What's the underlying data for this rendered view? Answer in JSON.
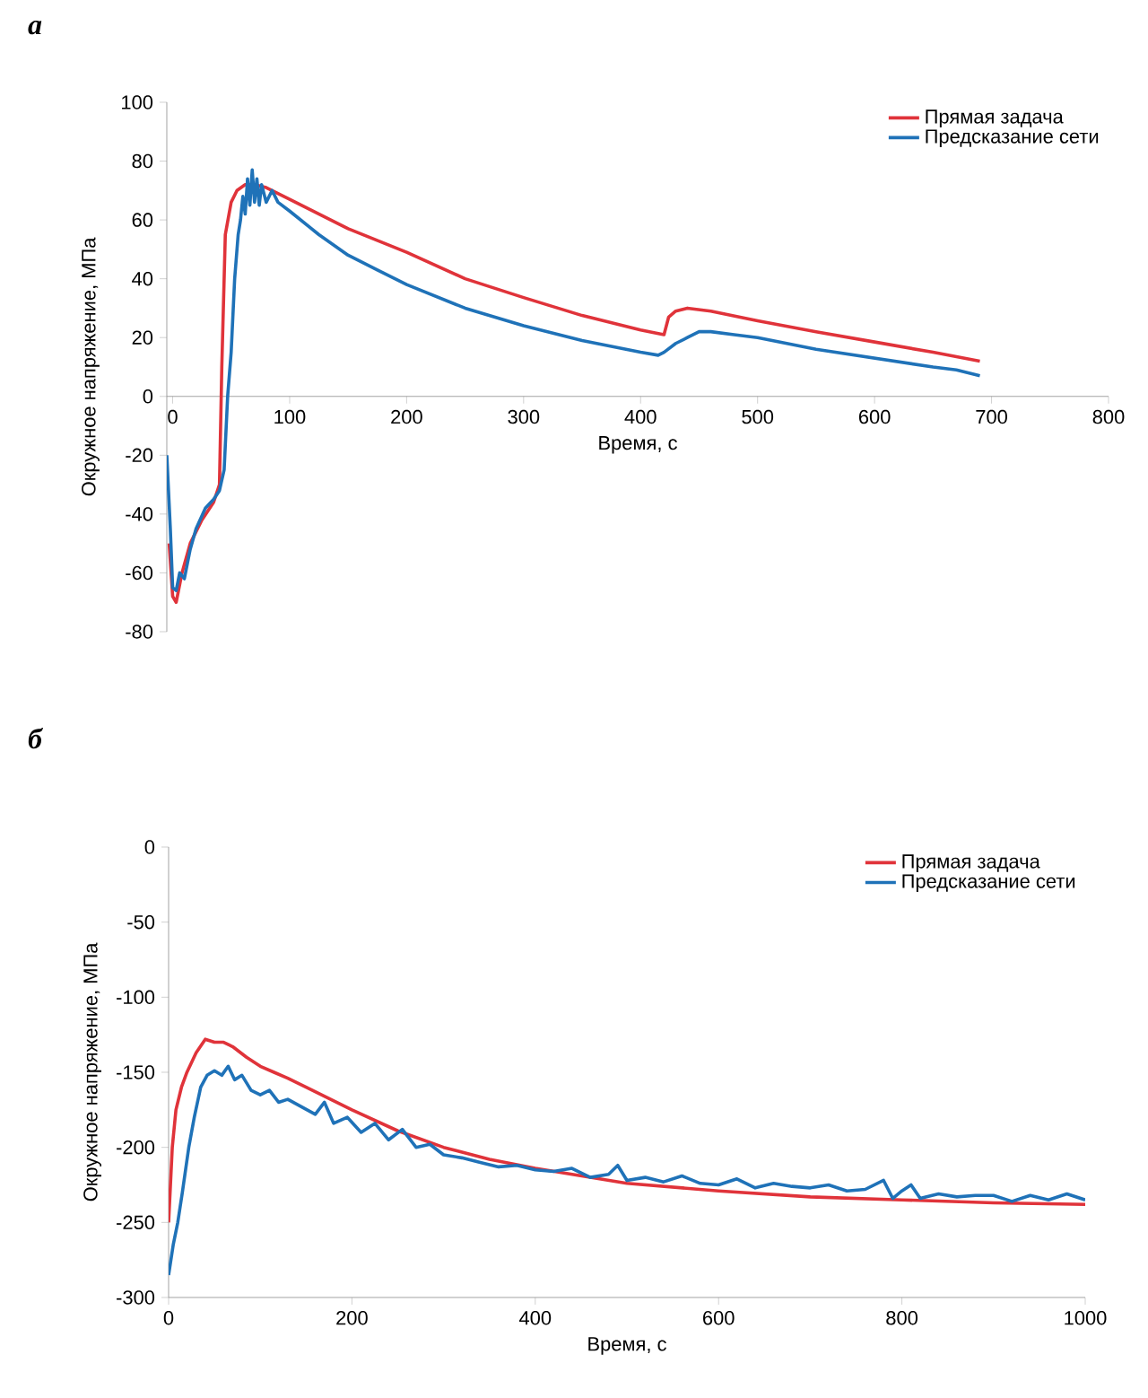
{
  "chart_data": [
    {
      "type": "line",
      "title": "а",
      "xlabel": "Время, с",
      "ylabel": "Окружное напряжение, МПа",
      "xlim": [
        -5,
        800
      ],
      "ylim": [
        -80,
        100
      ],
      "xticks": [
        0,
        100,
        200,
        300,
        400,
        500,
        600,
        700,
        800
      ],
      "yticks": [
        -80,
        -60,
        -40,
        -20,
        0,
        20,
        40,
        60,
        80,
        100
      ],
      "legend": "top right",
      "series": [
        {
          "name": "Прямая задача",
          "color": "#e0333a",
          "x": [
            -3,
            0,
            3,
            8,
            15,
            25,
            35,
            40,
            42,
            45,
            50,
            55,
            62,
            70,
            80,
            100,
            150,
            200,
            250,
            300,
            350,
            400,
            420,
            424,
            430,
            440,
            460,
            500,
            550,
            600,
            650,
            690
          ],
          "values": [
            -50,
            -68,
            -70,
            -60,
            -50,
            -42,
            -36,
            -30,
            10,
            55,
            66,
            70,
            72,
            72,
            71,
            67,
            57,
            49,
            40,
            33.6,
            27.5,
            22.6,
            21,
            27,
            29,
            30,
            29,
            25.7,
            22,
            18.5,
            15,
            12
          ]
        },
        {
          "name": "Предсказание сети",
          "color": "#1f72b8",
          "x": [
            -5,
            -2,
            0,
            3,
            6,
            10,
            15,
            20,
            28,
            35,
            40,
            44,
            47,
            50,
            53,
            56,
            58,
            60,
            62,
            64,
            66,
            68,
            70,
            72,
            74,
            76,
            80,
            85,
            90,
            100,
            125,
            150,
            175,
            200,
            250,
            300,
            350,
            400,
            415,
            420,
            430,
            440,
            450,
            460,
            480,
            500,
            550,
            600,
            650,
            670,
            690
          ],
          "values": [
            -20,
            -45,
            -65,
            -66,
            -60,
            -62,
            -52,
            -45,
            -38,
            -35,
            -32,
            -25,
            0,
            15,
            40,
            55,
            60,
            68,
            62,
            74,
            65,
            77,
            66,
            74,
            65,
            72,
            66,
            70,
            66,
            63,
            55,
            48,
            43,
            38,
            30,
            24,
            19,
            15,
            14,
            15,
            18,
            20,
            22,
            22,
            21,
            20,
            16,
            13,
            10,
            9,
            7
          ]
        }
      ]
    },
    {
      "type": "line",
      "title": "б",
      "xlabel": "Время, с",
      "ylabel": "Окружное напряжение, МПа",
      "xlim": [
        0,
        1000
      ],
      "ylim": [
        -300,
        0
      ],
      "xticks": [
        0,
        200,
        400,
        600,
        800,
        1000
      ],
      "yticks": [
        -300,
        -250,
        -200,
        -150,
        -100,
        -50,
        0
      ],
      "legend": "top right",
      "series": [
        {
          "name": "Прямая задача",
          "color": "#e0333a",
          "x": [
            0,
            4,
            8,
            14,
            20,
            30,
            40,
            50,
            60,
            70,
            85,
            100,
            115,
            130,
            150,
            200,
            250,
            300,
            350,
            400,
            500,
            600,
            700,
            800,
            900,
            1000
          ],
          "values": [
            -250,
            -200,
            -175,
            -160,
            -150,
            -137,
            -128,
            -130,
            -130,
            -133,
            -140,
            -146,
            -150,
            -154,
            -160,
            -175,
            -189,
            -200,
            -208,
            -214,
            -224,
            -229,
            -233,
            -235,
            -237,
            -238
          ]
        },
        {
          "name": "Предсказание сети",
          "color": "#1f72b8",
          "x": [
            0,
            5,
            10,
            15,
            22,
            28,
            35,
            42,
            50,
            58,
            65,
            72,
            80,
            90,
            100,
            110,
            120,
            130,
            145,
            160,
            170,
            180,
            195,
            210,
            225,
            240,
            255,
            270,
            285,
            300,
            320,
            340,
            360,
            380,
            400,
            420,
            440,
            460,
            480,
            490,
            500,
            520,
            540,
            560,
            580,
            600,
            620,
            640,
            660,
            680,
            700,
            720,
            740,
            760,
            780,
            790,
            800,
            810,
            820,
            840,
            860,
            880,
            900,
            920,
            940,
            960,
            980,
            1000
          ],
          "values": [
            -285,
            -265,
            -250,
            -230,
            -200,
            -180,
            -160,
            -152,
            -149,
            -152,
            -146,
            -155,
            -152,
            -162,
            -165,
            -162,
            -170,
            -168,
            -173,
            -178,
            -170,
            -184,
            -180,
            -190,
            -184,
            -195,
            -188,
            -200,
            -198,
            -205,
            -207,
            -210,
            -213,
            -212,
            -215,
            -216,
            -214,
            -220,
            -218,
            -212,
            -222,
            -220,
            -223,
            -219,
            -224,
            -225,
            -221,
            -227,
            -224,
            -226,
            -227,
            -225,
            -229,
            -228,
            -222,
            -234,
            -229,
            -225,
            -234,
            -231,
            -233,
            -232,
            -232,
            -236,
            -232,
            -235,
            -231,
            -235
          ]
        }
      ]
    }
  ]
}
